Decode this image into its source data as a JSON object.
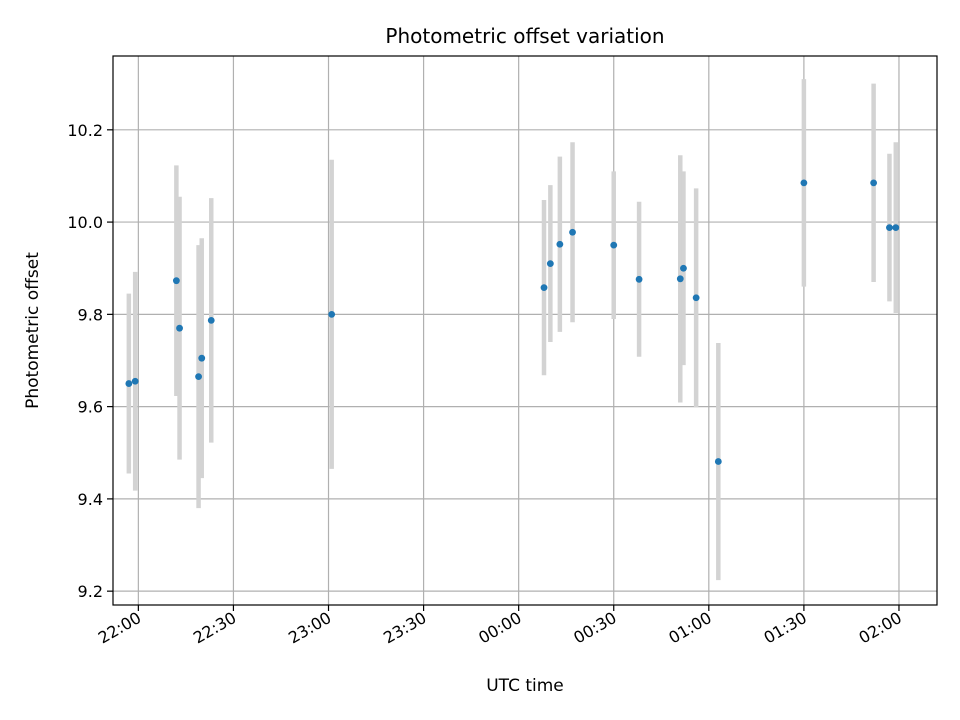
{
  "chart_data": {
    "type": "scatter",
    "title": "Photometric offset variation",
    "xlabel": "UTC time",
    "ylabel": "Photometric offset",
    "x_ticks": [
      "22:00",
      "22:30",
      "23:00",
      "23:30",
      "00:00",
      "00:30",
      "01:00",
      "01:30",
      "02:00"
    ],
    "y_ticks": [
      "9.2",
      "9.4",
      "9.6",
      "9.8",
      "10.0",
      "10.2"
    ],
    "xlim": [
      "21:52",
      "02:12"
    ],
    "ylim": [
      9.17,
      10.36
    ],
    "grid": true,
    "point_color": "#1f77b4",
    "errorbar_color": "#d3d3d3",
    "series": [
      {
        "points": [
          {
            "x": "21:57",
            "y": 9.65,
            "err": 0.195
          },
          {
            "x": "21:59",
            "y": 9.655,
            "err": 0.237
          },
          {
            "x": "22:12",
            "y": 9.873,
            "err": 0.25
          },
          {
            "x": "22:13",
            "y": 9.77,
            "err": 0.285
          },
          {
            "x": "22:19",
            "y": 9.665,
            "err": 0.285
          },
          {
            "x": "22:20",
            "y": 9.705,
            "err": 0.26
          },
          {
            "x": "22:23",
            "y": 9.787,
            "err": 0.265
          },
          {
            "x": "23:01",
            "y": 9.8,
            "err": 0.335
          },
          {
            "x": "00:08",
            "y": 9.858,
            "err": 0.19
          },
          {
            "x": "00:10",
            "y": 9.91,
            "err": 0.17
          },
          {
            "x": "00:13",
            "y": 9.952,
            "err": 0.19
          },
          {
            "x": "00:17",
            "y": 9.978,
            "err": 0.195
          },
          {
            "x": "00:30",
            "y": 9.95,
            "err": 0.16
          },
          {
            "x": "00:38",
            "y": 9.876,
            "err": 0.168
          },
          {
            "x": "00:51",
            "y": 9.877,
            "err": 0.268
          },
          {
            "x": "00:52",
            "y": 9.9,
            "err": 0.21
          },
          {
            "x": "00:56",
            "y": 9.836,
            "err": 0.237
          },
          {
            "x": "01:03",
            "y": 9.481,
            "err": 0.257
          },
          {
            "x": "01:30",
            "y": 10.085,
            "err": 0.225
          },
          {
            "x": "01:52",
            "y": 10.085,
            "err": 0.215
          },
          {
            "x": "01:57",
            "y": 9.988,
            "err": 0.16
          },
          {
            "x": "01:59",
            "y": 9.988,
            "err": 0.185
          }
        ]
      }
    ]
  }
}
